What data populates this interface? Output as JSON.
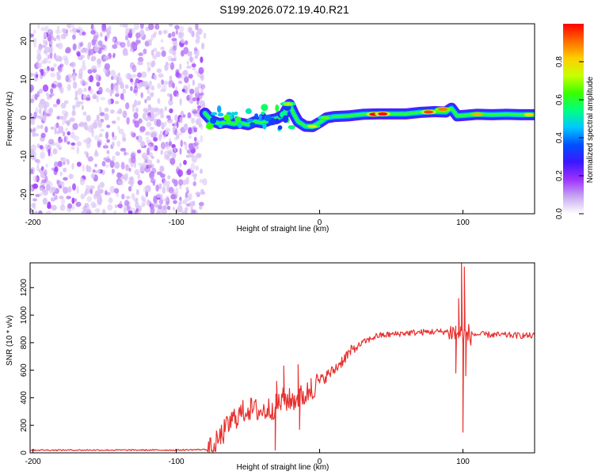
{
  "title": "S199.2026.072.19.40.R21",
  "colors": {
    "snr_line": "#e8312f",
    "axis": "#000000",
    "scatter": "#8a2be2"
  },
  "chart_data": [
    {
      "type": "heatmap",
      "title": "S199.2026.072.19.40.R21",
      "xlabel": "Height of straight line (km)",
      "ylabel": "Frequency (Hz)",
      "xlim": [
        -202,
        150
      ],
      "ylim": [
        -25,
        24.5
      ],
      "xticks": [
        -200,
        -100,
        0,
        100
      ],
      "yticks": [
        -20,
        -10,
        0,
        10,
        20
      ],
      "colorbar": {
        "label": "Normalized spectral amplitude",
        "range": [
          0.0,
          1.0
        ],
        "ticks": [
          0.0,
          0.2,
          0.4,
          0.6,
          0.8
        ],
        "colormap": [
          "#ffffff",
          "#c7a6f0",
          "#9b30ff",
          "#3a18ff",
          "#0050ff",
          "#00c8ff",
          "#00ff80",
          "#3cff00",
          "#c8ff00",
          "#ffcf00",
          "#ff6a00",
          "#ff0000"
        ]
      },
      "noise_region": {
        "x_range": [
          -202,
          -80
        ],
        "y_range": [
          -25,
          24.5
        ],
        "dominant_amplitude": 0.05
      },
      "ridge": [
        {
          "x": -80,
          "y": 1.2
        },
        {
          "x": -75,
          "y": -0.8
        },
        {
          "x": -70,
          "y": -1.5
        },
        {
          "x": -65,
          "y": -1.2
        },
        {
          "x": -60,
          "y": -1.6
        },
        {
          "x": -55,
          "y": -1.4
        },
        {
          "x": -50,
          "y": -1.8
        },
        {
          "x": -45,
          "y": -1.0
        },
        {
          "x": -40,
          "y": -1.3
        },
        {
          "x": -35,
          "y": -0.6
        },
        {
          "x": -30,
          "y": -0.2
        },
        {
          "x": -25,
          "y": 0.8
        },
        {
          "x": -21,
          "y": 3.5
        },
        {
          "x": -18,
          "y": 1.0
        },
        {
          "x": -15,
          "y": -1.0
        },
        {
          "x": -10,
          "y": -2.2
        },
        {
          "x": -5,
          "y": -2.3
        },
        {
          "x": 0,
          "y": -1.2
        },
        {
          "x": 5,
          "y": 0.0
        },
        {
          "x": 10,
          "y": 0.3
        },
        {
          "x": 20,
          "y": 0.5
        },
        {
          "x": 30,
          "y": 0.9
        },
        {
          "x": 40,
          "y": 1.0
        },
        {
          "x": 50,
          "y": 1.0
        },
        {
          "x": 60,
          "y": 1.0
        },
        {
          "x": 70,
          "y": 1.4
        },
        {
          "x": 80,
          "y": 1.6
        },
        {
          "x": 88,
          "y": 1.5
        },
        {
          "x": 92,
          "y": 2.5
        },
        {
          "x": 96,
          "y": 0.5
        },
        {
          "x": 100,
          "y": 0.6
        },
        {
          "x": 110,
          "y": 0.9
        },
        {
          "x": 120,
          "y": 0.8
        },
        {
          "x": 130,
          "y": 0.9
        },
        {
          "x": 140,
          "y": 0.8
        },
        {
          "x": 150,
          "y": 0.8
        }
      ],
      "peaks": [
        {
          "x": 38,
          "y": 0.9,
          "value": 1.0
        },
        {
          "x": 44,
          "y": 1.0,
          "value": 1.0
        },
        {
          "x": 76,
          "y": 1.5,
          "value": 0.95
        },
        {
          "x": 86,
          "y": 2.2,
          "value": 0.9
        },
        {
          "x": 110,
          "y": 0.9,
          "value": 0.85
        },
        {
          "x": 146,
          "y": 0.8,
          "value": 0.8
        },
        {
          "x": -5,
          "y": -2.2,
          "value": 0.75
        },
        {
          "x": -22,
          "y": 3.6,
          "value": 0.7
        },
        {
          "x": 4,
          "y": 0.0,
          "value": 0.65
        }
      ]
    },
    {
      "type": "line",
      "xlabel": "Height of straight line (km)",
      "ylabel": "SNR (10 * v/v)",
      "xlim": [
        -202,
        150
      ],
      "ylim": [
        0,
        1380
      ],
      "xticks": [
        -200,
        -100,
        0,
        100
      ],
      "yticks": [
        0,
        200,
        400,
        600,
        800,
        1000,
        1200
      ],
      "series": [
        {
          "name": "SNR",
          "color": "#e8312f",
          "baseline_points": [
            {
              "x": -202,
              "y": 20
            },
            {
              "x": -150,
              "y": 20
            },
            {
              "x": -100,
              "y": 20
            },
            {
              "x": -75,
              "y": 25
            },
            {
              "x": -65,
              "y": 180
            },
            {
              "x": -60,
              "y": 250
            },
            {
              "x": -50,
              "y": 320
            },
            {
              "x": -40,
              "y": 300
            },
            {
              "x": -30,
              "y": 340
            },
            {
              "x": -25,
              "y": 390
            },
            {
              "x": -20,
              "y": 380
            },
            {
              "x": -10,
              "y": 420
            },
            {
              "x": 0,
              "y": 520
            },
            {
              "x": 10,
              "y": 600
            },
            {
              "x": 20,
              "y": 720
            },
            {
              "x": 30,
              "y": 800
            },
            {
              "x": 40,
              "y": 850
            },
            {
              "x": 60,
              "y": 870
            },
            {
              "x": 80,
              "y": 880
            },
            {
              "x": 90,
              "y": 880
            },
            {
              "x": 100,
              "y": 860
            },
            {
              "x": 110,
              "y": 860
            },
            {
              "x": 130,
              "y": 855
            },
            {
              "x": 150,
              "y": 850
            }
          ],
          "features": [
            {
              "x": -30,
              "y": 520
            },
            {
              "x": -31,
              "y": 20
            },
            {
              "x": -25,
              "y": 630
            },
            {
              "x": -15,
              "y": 640
            },
            {
              "x": -14,
              "y": 170
            },
            {
              "x": -6,
              "y": 540
            },
            {
              "x": 95,
              "y": 580
            },
            {
              "x": 97,
              "y": 1120
            },
            {
              "x": 99,
              "y": 1380
            },
            {
              "x": 100,
              "y": 150
            },
            {
              "x": 101,
              "y": 1350
            },
            {
              "x": 102,
              "y": 560
            }
          ]
        }
      ]
    }
  ]
}
